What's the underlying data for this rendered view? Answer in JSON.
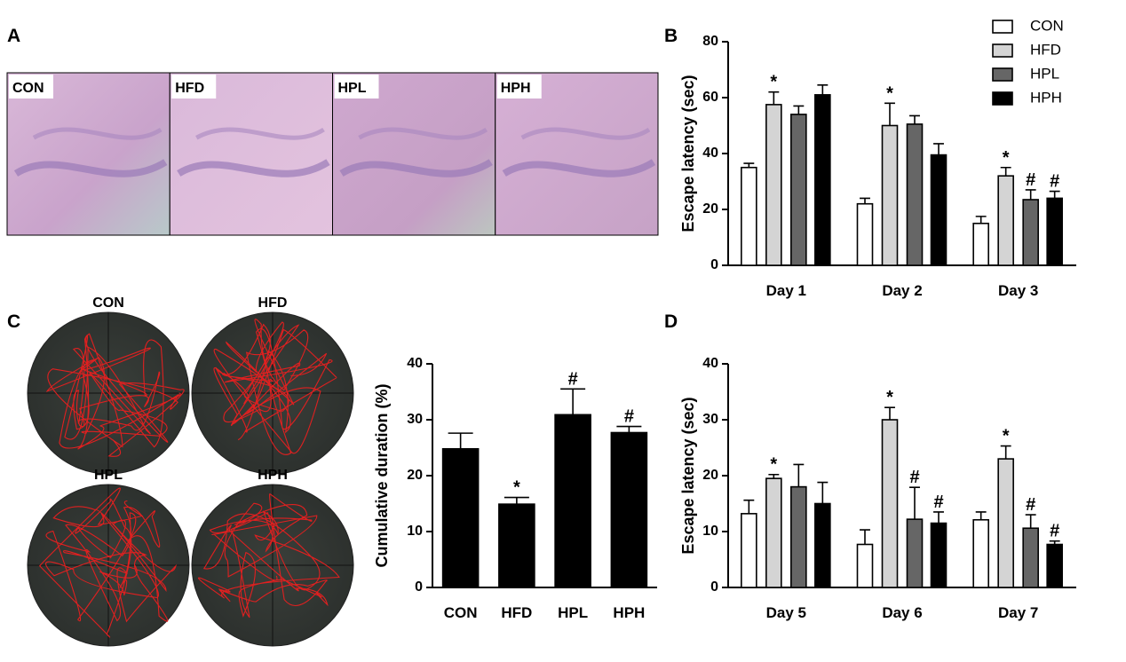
{
  "panel_labels": [
    "A",
    "B",
    "C",
    "D"
  ],
  "histology_labels": [
    "CON",
    "HFD",
    "HPL",
    "HPH"
  ],
  "maze_labels": [
    "CON",
    "HFD",
    "HPL",
    "HPH"
  ],
  "chart_data": [
    {
      "type": "bar",
      "y_label": "Escape latency (sec)",
      "categories": [
        "Day 1",
        "Day 2",
        "Day 3"
      ],
      "series": [
        {
          "name": "CON",
          "color": "#ffffff",
          "values": [
            35,
            22,
            15
          ],
          "errors": [
            1.5,
            2,
            2.5
          ],
          "annotations": [
            null,
            null,
            null
          ]
        },
        {
          "name": "HFD",
          "color": "#d4d4d4",
          "values": [
            57.5,
            50,
            32
          ],
          "errors": [
            4.5,
            8,
            3
          ],
          "annotations": [
            "*",
            "*",
            "*"
          ]
        },
        {
          "name": "HPL",
          "color": "#666666",
          "values": [
            54,
            50.5,
            23.5
          ],
          "errors": [
            3,
            3,
            3.5
          ],
          "annotations": [
            null,
            null,
            "#"
          ]
        },
        {
          "name": "HPH",
          "color": "#000000",
          "values": [
            61,
            39.5,
            24
          ],
          "errors": [
            3.5,
            4,
            2.5
          ],
          "annotations": [
            null,
            null,
            "#"
          ]
        }
      ],
      "ylim": [
        0,
        80
      ],
      "yticks": [
        0,
        20,
        40,
        60,
        80
      ],
      "legend": "upper right"
    },
    {
      "type": "bar",
      "y_label": "Cumulative duration (%)",
      "categories": [
        "CON",
        "HFD",
        "HPL",
        "HPH"
      ],
      "values": [
        24.8,
        14.9,
        30.9,
        27.7
      ],
      "errors": [
        2.8,
        1.2,
        4.6,
        1.1
      ],
      "annotations": [
        null,
        "*",
        "#",
        "#"
      ],
      "color": "#000000",
      "ylim": [
        0,
        40
      ],
      "yticks": [
        0,
        10,
        20,
        30,
        40
      ]
    },
    {
      "type": "bar",
      "y_label": "Escape latency (sec)",
      "categories": [
        "Day 5",
        "Day 6",
        "Day 7"
      ],
      "series": [
        {
          "name": "CON",
          "color": "#ffffff",
          "values": [
            13.2,
            7.7,
            12.1
          ],
          "errors": [
            2.4,
            2.6,
            1.4
          ],
          "annotations": [
            null,
            null,
            null
          ]
        },
        {
          "name": "HFD",
          "color": "#d4d4d4",
          "values": [
            19.5,
            30,
            23
          ],
          "errors": [
            0.7,
            2.2,
            2.3
          ],
          "annotations": [
            "*",
            "*",
            "*"
          ]
        },
        {
          "name": "HPL",
          "color": "#666666",
          "values": [
            18,
            12.2,
            10.6
          ],
          "errors": [
            4,
            5.7,
            2.4
          ],
          "annotations": [
            null,
            "#",
            "#"
          ]
        },
        {
          "name": "HPH",
          "color": "#000000",
          "values": [
            15,
            11.5,
            7.7
          ],
          "errors": [
            3.8,
            2,
            0.6
          ],
          "annotations": [
            null,
            "#",
            "#"
          ]
        }
      ],
      "ylim": [
        0,
        40
      ],
      "yticks": [
        0,
        10,
        20,
        30,
        40
      ]
    }
  ]
}
